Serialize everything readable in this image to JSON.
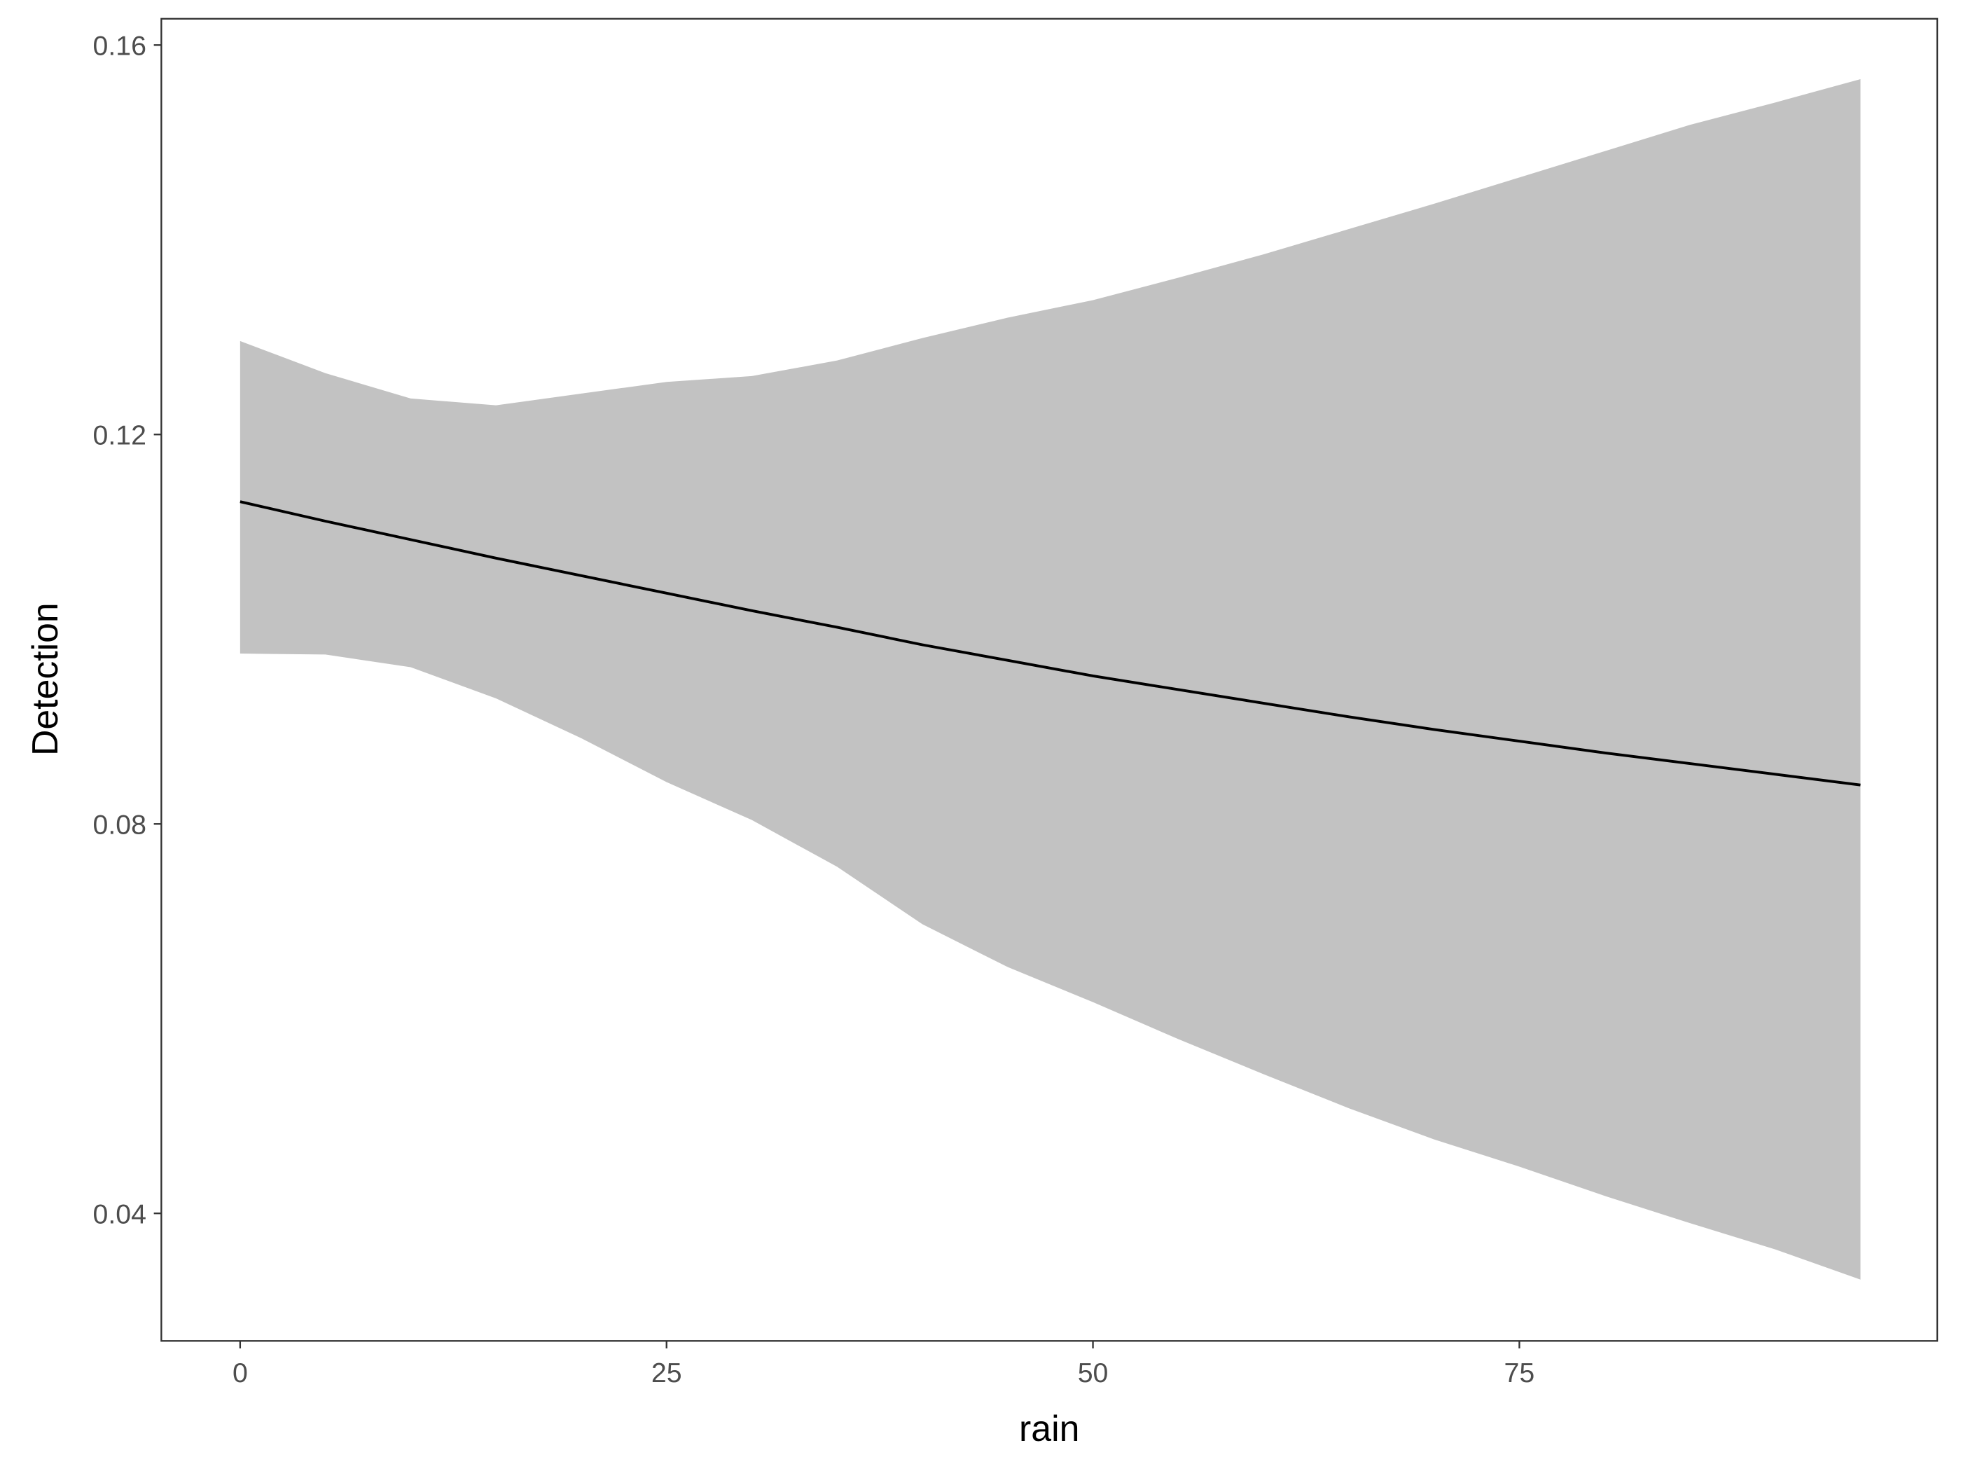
{
  "chart_data": {
    "type": "line",
    "x_label": "rain",
    "y_label": "Detection",
    "x": [
      0,
      5,
      10,
      15,
      20,
      25,
      30,
      35,
      40,
      45,
      50,
      55,
      60,
      65,
      70,
      75,
      80,
      85,
      90,
      95
    ],
    "values": [
      0.1131,
      0.1111,
      0.1092,
      0.1073,
      0.1055,
      0.1037,
      0.1019,
      0.1002,
      0.0984,
      0.0968,
      0.0952,
      0.0938,
      0.0924,
      0.091,
      0.0897,
      0.0885,
      0.0873,
      0.0862,
      0.0851,
      0.084
    ],
    "lower": [
      0.0975,
      0.0974,
      0.0961,
      0.0929,
      0.0888,
      0.0843,
      0.0804,
      0.0756,
      0.0697,
      0.0653,
      0.0617,
      0.0579,
      0.0543,
      0.0508,
      0.0476,
      0.0448,
      0.0418,
      0.039,
      0.0363,
      0.0332
    ],
    "upper": [
      0.1296,
      0.1263,
      0.1237,
      0.123,
      0.1242,
      0.1254,
      0.126,
      0.1276,
      0.1299,
      0.132,
      0.1338,
      0.1361,
      0.1385,
      0.1411,
      0.1437,
      0.1464,
      0.1491,
      0.1518,
      0.1541,
      0.1565
    ],
    "color": "#000000",
    "band_color": "#c2c2c2",
    "xlim": [
      -4.62,
      99.5
    ],
    "xticks": [
      0,
      25,
      50,
      75
    ],
    "ylim": [
      0.0269,
      0.1627
    ],
    "yticks": [
      0.04,
      0.08,
      0.12,
      0.16
    ],
    "grid": false
  }
}
